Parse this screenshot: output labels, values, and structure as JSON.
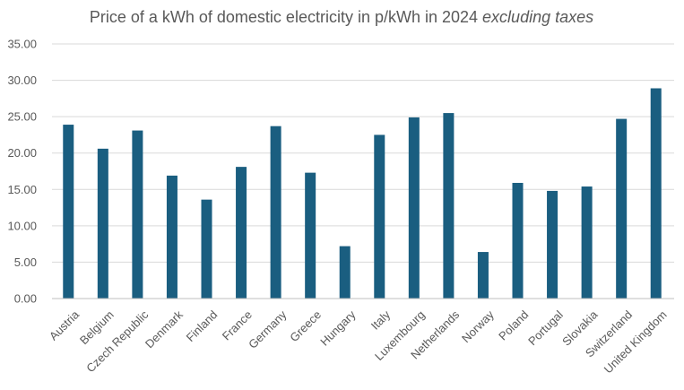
{
  "chart_data": {
    "type": "bar",
    "title": "Price of a kWh of domestic electricity in p/kWh in 2024",
    "title_emphasis": "excluding taxes",
    "xlabel": "",
    "ylabel": "",
    "ylim": [
      0,
      35
    ],
    "y_ticks": [
      "0.00",
      "5.00",
      "10.00",
      "15.00",
      "20.00",
      "25.00",
      "30.00",
      "35.00"
    ],
    "grid": true,
    "legend": "none",
    "bar_color": "#1a5e80",
    "categories": [
      "Austria",
      "Belgium",
      "Czech Republic",
      "Denmark",
      "Finland",
      "France",
      "Germany",
      "Greece",
      "Hungary",
      "Italy",
      "Luxembourg",
      "Netherlands",
      "Norway",
      "Poland",
      "Portugal",
      "Slovakia",
      "Switzerland",
      "United Kingdom"
    ],
    "values": [
      23.9,
      20.6,
      23.1,
      16.9,
      13.6,
      18.1,
      23.7,
      17.3,
      7.2,
      22.5,
      24.9,
      25.5,
      6.4,
      15.9,
      14.8,
      15.4,
      24.7,
      28.9
    ]
  }
}
